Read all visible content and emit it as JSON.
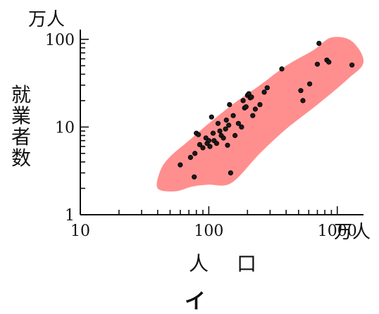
{
  "chart_data": {
    "type": "scatter",
    "title": "",
    "panel_label": "イ",
    "xlabel": "人　口",
    "ylabel": "就業者数",
    "x_unit": "万人",
    "y_unit": "万人",
    "x_scale": "log",
    "y_scale": "log",
    "xlim": [
      10,
      1600
    ],
    "ylim": [
      1,
      120
    ],
    "x_ticks": [
      {
        "value": 10,
        "label": "10"
      },
      {
        "value": 100,
        "label": "100"
      },
      {
        "value": 1000,
        "label": "1000"
      }
    ],
    "y_ticks": [
      {
        "value": 1,
        "label": "1"
      },
      {
        "value": 10,
        "label": "10"
      },
      {
        "value": 100,
        "label": "100"
      }
    ],
    "grid": false,
    "region_color": "#ff8f8f",
    "point_color": "#1a1a1a",
    "region_outline": [
      [
        42,
        3.2
      ],
      [
        40,
        2.0
      ],
      [
        55,
        1.85
      ],
      [
        75,
        2.1
      ],
      [
        100,
        2.2
      ],
      [
        150,
        2.3
      ],
      [
        250,
        5.0
      ],
      [
        400,
        9.5
      ],
      [
        700,
        18
      ],
      [
        1200,
        35
      ],
      [
        1600,
        55
      ],
      [
        1300,
        95
      ],
      [
        900,
        105
      ],
      [
        650,
        75
      ],
      [
        400,
        50
      ],
      [
        250,
        30
      ],
      [
        160,
        19
      ],
      [
        100,
        11
      ],
      [
        70,
        7.0
      ],
      [
        50,
        4.6
      ]
    ],
    "points": [
      {
        "x": 60,
        "y": 3.7
      },
      {
        "x": 72,
        "y": 4.5
      },
      {
        "x": 77,
        "y": 2.7
      },
      {
        "x": 78,
        "y": 5.0
      },
      {
        "x": 80,
        "y": 8.5
      },
      {
        "x": 83,
        "y": 8.2
      },
      {
        "x": 85,
        "y": 6.3
      },
      {
        "x": 90,
        "y": 5.8
      },
      {
        "x": 95,
        "y": 7.5
      },
      {
        "x": 97,
        "y": 6.5
      },
      {
        "x": 100,
        "y": 7.0
      },
      {
        "x": 102,
        "y": 6.0
      },
      {
        "x": 105,
        "y": 13.0
      },
      {
        "x": 108,
        "y": 8.5
      },
      {
        "x": 110,
        "y": 7.0
      },
      {
        "x": 115,
        "y": 6.5
      },
      {
        "x": 118,
        "y": 11.0
      },
      {
        "x": 122,
        "y": 9.0
      },
      {
        "x": 125,
        "y": 8.0
      },
      {
        "x": 130,
        "y": 7.5
      },
      {
        "x": 135,
        "y": 9.5
      },
      {
        "x": 137,
        "y": 12.0
      },
      {
        "x": 140,
        "y": 6.2
      },
      {
        "x": 143,
        "y": 10.5
      },
      {
        "x": 145,
        "y": 18.0
      },
      {
        "x": 148,
        "y": 3.0
      },
      {
        "x": 155,
        "y": 13.5
      },
      {
        "x": 160,
        "y": 8.0
      },
      {
        "x": 170,
        "y": 11.0
      },
      {
        "x": 180,
        "y": 10.0
      },
      {
        "x": 185,
        "y": 20.0
      },
      {
        "x": 190,
        "y": 16.5
      },
      {
        "x": 195,
        "y": 17.0
      },
      {
        "x": 200,
        "y": 23.0
      },
      {
        "x": 205,
        "y": 24.0
      },
      {
        "x": 210,
        "y": 21.5
      },
      {
        "x": 215,
        "y": 22.0
      },
      {
        "x": 220,
        "y": 13.5
      },
      {
        "x": 230,
        "y": 16.0
      },
      {
        "x": 250,
        "y": 18.0
      },
      {
        "x": 270,
        "y": 25.0
      },
      {
        "x": 285,
        "y": 28.0
      },
      {
        "x": 370,
        "y": 46.0
      },
      {
        "x": 520,
        "y": 26.0
      },
      {
        "x": 540,
        "y": 20.0
      },
      {
        "x": 610,
        "y": 31.0
      },
      {
        "x": 700,
        "y": 52.0
      },
      {
        "x": 720,
        "y": 90.0
      },
      {
        "x": 830,
        "y": 58.0
      },
      {
        "x": 860,
        "y": 55.0
      },
      {
        "x": 1300,
        "y": 51.0
      }
    ]
  }
}
